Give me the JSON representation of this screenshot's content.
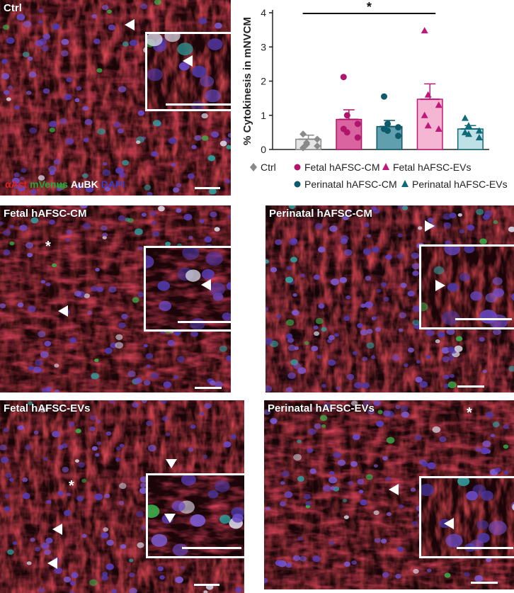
{
  "panels": {
    "ctrl": {
      "title": "Ctrl"
    },
    "fetal_cm": {
      "title": "Fetal hAFSC-CM"
    },
    "perinatal_cm": {
      "title": "Perinatal hAFSC-CM"
    },
    "fetal_evs": {
      "title": "Fetal hAFSC-EVs"
    },
    "perinatal_evs": {
      "title": "Perinatal hAFSC-EVs"
    }
  },
  "stain_legend": {
    "aact": {
      "label": "αAct",
      "color": "#e0201e"
    },
    "mvenus": {
      "label": "mVenus",
      "color": "#23a836"
    },
    "aubk": {
      "label": "AuBK",
      "color": "#ffffff"
    },
    "dapi": {
      "label": "DAPI",
      "color": "#3a3acb"
    }
  },
  "annotation_star": "*",
  "chart_data": {
    "type": "bar",
    "ylabel": "% Cytokinesis in mNVCM",
    "ylim": [
      0,
      4
    ],
    "yticks": [
      "0",
      "1",
      "2",
      "3",
      "4"
    ],
    "significance": "*",
    "series": [
      {
        "name": "Ctrl",
        "mean": 0.3,
        "sem": 0.12,
        "color": "#8a8a8a",
        "fill": "#e6e6e6",
        "marker": "diamond",
        "points": [
          0.05,
          0.15,
          0.3,
          0.45,
          0.2,
          0.1
        ]
      },
      {
        "name": "Fetal hAFSC-CM",
        "mean": 0.88,
        "sem": 0.28,
        "color": "#b0156b",
        "fill": "#d9649f",
        "marker": "circle",
        "points": [
          2.12,
          1.0,
          0.75,
          0.6,
          0.5,
          0.35
        ]
      },
      {
        "name": "Perinatal hAFSC-CM",
        "mean": 0.67,
        "sem": 0.18,
        "color": "#0e5a6b",
        "fill": "#5f9fae",
        "marker": "circle",
        "points": [
          1.55,
          0.75,
          0.65,
          0.6,
          0.55,
          0.4
        ]
      },
      {
        "name": "Fetal hAFSC-EVs",
        "mean": 1.47,
        "sem": 0.45,
        "color": "#c0187a",
        "fill": "#f4b6d3",
        "marker": "triangle",
        "points": [
          3.48,
          1.6,
          1.3,
          1.0,
          0.7,
          0.6
        ]
      },
      {
        "name": "Perinatal hAFSC-EVs",
        "mean": 0.6,
        "sem": 0.1,
        "color": "#0f6a79",
        "fill": "#bfe0e4",
        "marker": "triangle",
        "points": [
          0.92,
          0.7,
          0.55,
          0.5,
          0.45,
          0.35
        ]
      }
    ],
    "legend": [
      {
        "label": "Ctrl",
        "color": "#8a8a8a",
        "marker": "diamond"
      },
      {
        "label": "Fetal hAFSC-CM",
        "color": "#b0156b",
        "marker": "circle"
      },
      {
        "label": "Fetal hAFSC-EVs",
        "color": "#c0187a",
        "marker": "triangle"
      },
      {
        "label": "Perinatal hAFSC-CM",
        "color": "#0e5a6b",
        "marker": "circle"
      },
      {
        "label": "Perinatal hAFSC-EVs",
        "color": "#0f6a79",
        "marker": "triangle"
      }
    ]
  }
}
